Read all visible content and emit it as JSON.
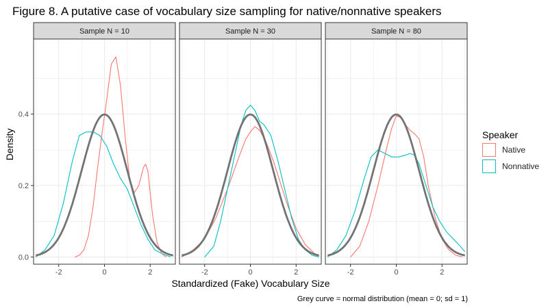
{
  "title": "Figure 8. A putative case of vocabulary size sampling for native/nonnative speakers",
  "caption": "Grey curve = normal distribution (mean = 0; sd = 1)",
  "colors": {
    "native": "#F8766D",
    "nonnative": "#00BFC4",
    "normal": "#737373",
    "strip": "#D9D9D9",
    "grid": "#EBEBEB"
  },
  "chart_data": {
    "type": "line",
    "title": "Figure 8. A putative case of vocabulary size sampling for native/nonnative speakers",
    "xlabel": "Standardized (Fake) Vocabulary Size",
    "ylabel": "Density",
    "xlim": [
      -3.1,
      3.1
    ],
    "ylim": [
      -0.02,
      0.61
    ],
    "x_ticks": [
      -2,
      0,
      2
    ],
    "x_tick_labels": [
      "-2",
      "0",
      "2"
    ],
    "y_ticks": [
      0.0,
      0.2,
      0.4
    ],
    "y_tick_labels": [
      "0.0",
      "0.2",
      "0.4"
    ],
    "grid": true,
    "legend": {
      "title": "Speaker",
      "position": "right",
      "entries": [
        "Native",
        "Nonnative"
      ]
    },
    "reference_curve": "standard normal density (mean = 0; sd = 1)",
    "panels": [
      {
        "strip_label": "Sample N = 10",
        "series": [
          {
            "name": "Native",
            "x": [
              -1.3,
              -1.1,
              -0.9,
              -0.7,
              -0.5,
              -0.3,
              -0.1,
              0.1,
              0.3,
              0.5,
              0.7,
              0.9,
              1.1,
              1.3,
              1.5,
              1.7,
              1.8,
              1.9,
              2.1,
              2.3,
              2.5,
              2.7
            ],
            "y": [
              0.0,
              0.005,
              0.02,
              0.06,
              0.14,
              0.25,
              0.35,
              0.44,
              0.54,
              0.56,
              0.48,
              0.34,
              0.22,
              0.18,
              0.2,
              0.25,
              0.26,
              0.24,
              0.12,
              0.04,
              0.01,
              0.0
            ]
          },
          {
            "name": "Nonnative",
            "x": [
              -3.0,
              -2.6,
              -2.2,
              -1.8,
              -1.4,
              -1.1,
              -0.8,
              -0.5,
              -0.2,
              0.1,
              0.4,
              0.7,
              1.0,
              1.3,
              1.6,
              1.9,
              2.2,
              2.5,
              2.9
            ],
            "y": [
              0.0,
              0.02,
              0.06,
              0.15,
              0.27,
              0.34,
              0.35,
              0.35,
              0.34,
              0.31,
              0.26,
              0.22,
              0.19,
              0.14,
              0.09,
              0.05,
              0.02,
              0.01,
              0.0
            ]
          }
        ]
      },
      {
        "strip_label": "Sample N = 30",
        "series": [
          {
            "name": "Native",
            "x": [
              -3.0,
              -2.5,
              -2.0,
              -1.5,
              -1.0,
              -0.5,
              -0.2,
              0.0,
              0.2,
              0.4,
              0.7,
              1.0,
              1.3,
              1.6,
              2.0,
              2.4,
              2.8,
              3.0
            ],
            "y": [
              0.0,
              0.02,
              0.05,
              0.11,
              0.19,
              0.28,
              0.33,
              0.35,
              0.365,
              0.355,
              0.32,
              0.27,
              0.21,
              0.15,
              0.08,
              0.035,
              0.01,
              0.005
            ]
          },
          {
            "name": "Nonnative",
            "x": [
              -2.0,
              -1.6,
              -1.3,
              -1.0,
              -0.7,
              -0.4,
              -0.2,
              0.0,
              0.2,
              0.4,
              0.6,
              0.9,
              1.2,
              1.5,
              1.8,
              2.1,
              2.4,
              2.7,
              3.0
            ],
            "y": [
              0.0,
              0.03,
              0.1,
              0.19,
              0.28,
              0.37,
              0.41,
              0.425,
              0.41,
              0.38,
              0.37,
              0.34,
              0.27,
              0.19,
              0.11,
              0.05,
              0.02,
              0.005,
              0.0
            ]
          }
        ]
      },
      {
        "strip_label": "Sample N = 80",
        "series": [
          {
            "name": "Native",
            "x": [
              -2.0,
              -1.6,
              -1.2,
              -0.8,
              -0.4,
              -0.2,
              0.0,
              0.2,
              0.4,
              0.6,
              0.8,
              1.0,
              1.2,
              1.4,
              1.7,
              2.0,
              2.3,
              2.6,
              2.9
            ],
            "y": [
              0.0,
              0.03,
              0.1,
              0.2,
              0.31,
              0.36,
              0.395,
              0.39,
              0.37,
              0.355,
              0.345,
              0.33,
              0.28,
              0.2,
              0.11,
              0.05,
              0.02,
              0.005,
              0.0
            ]
          },
          {
            "name": "Nonnative",
            "x": [
              -3.0,
              -2.6,
              -2.2,
              -1.8,
              -1.4,
              -1.1,
              -0.8,
              -0.5,
              -0.2,
              0.1,
              0.4,
              0.6,
              0.8,
              1.0,
              1.3,
              1.6,
              1.9,
              2.2,
              2.5,
              2.8,
              3.0
            ],
            "y": [
              0.0,
              0.02,
              0.06,
              0.13,
              0.22,
              0.28,
              0.3,
              0.29,
              0.28,
              0.28,
              0.285,
              0.29,
              0.285,
              0.26,
              0.2,
              0.14,
              0.1,
              0.07,
              0.05,
              0.03,
              0.015
            ]
          }
        ]
      }
    ]
  }
}
